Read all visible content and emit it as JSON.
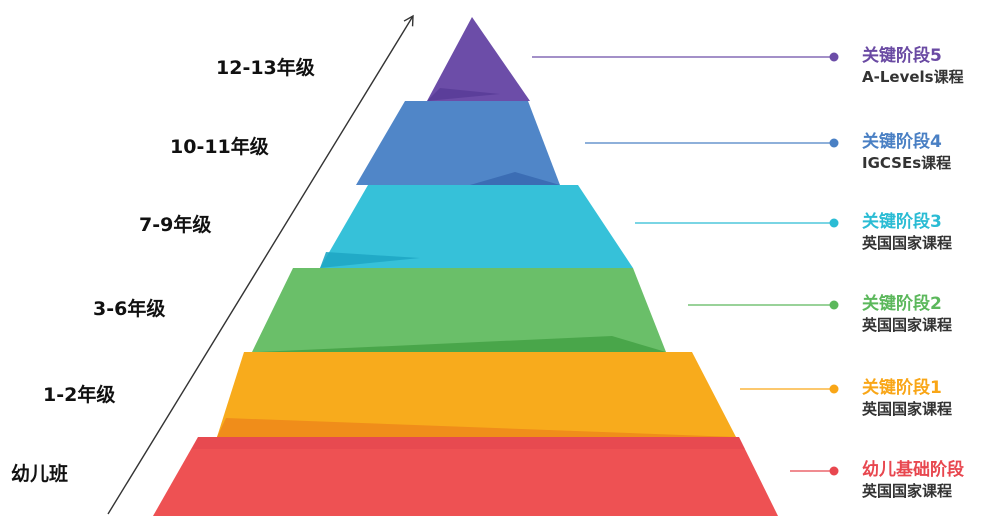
{
  "grades": [
    {
      "id": "kindergarten",
      "label": "幼儿班"
    },
    {
      "id": "g1-2",
      "label": "1-2年级"
    },
    {
      "id": "g3-6",
      "label": "3-6年级"
    },
    {
      "id": "g7-9",
      "label": "7-9年级"
    },
    {
      "id": "g10-11",
      "label": "10-11年级"
    },
    {
      "id": "g12-13",
      "label": "12-13年级"
    }
  ],
  "stages": [
    {
      "id": "foundation",
      "title": "幼儿基础阶段",
      "subtitle": "英国国家课程",
      "color": "#e8474f"
    },
    {
      "id": "ks1",
      "title": "关键阶段1",
      "subtitle": "英国国家课程",
      "color": "#f9a617"
    },
    {
      "id": "ks2",
      "title": "关键阶段2",
      "subtitle": "英国国家课程",
      "color": "#5cb85c"
    },
    {
      "id": "ks3",
      "title": "关键阶段3",
      "subtitle": "英国国家课程",
      "color": "#2bbcd4"
    },
    {
      "id": "ks4",
      "title": "关键阶段4",
      "subtitle": "IGCSEs课程",
      "color": "#4a80c4"
    },
    {
      "id": "ks5",
      "title": "关键阶段5",
      "subtitle": "A-Levels课程",
      "color": "#6a4aa3"
    }
  ]
}
